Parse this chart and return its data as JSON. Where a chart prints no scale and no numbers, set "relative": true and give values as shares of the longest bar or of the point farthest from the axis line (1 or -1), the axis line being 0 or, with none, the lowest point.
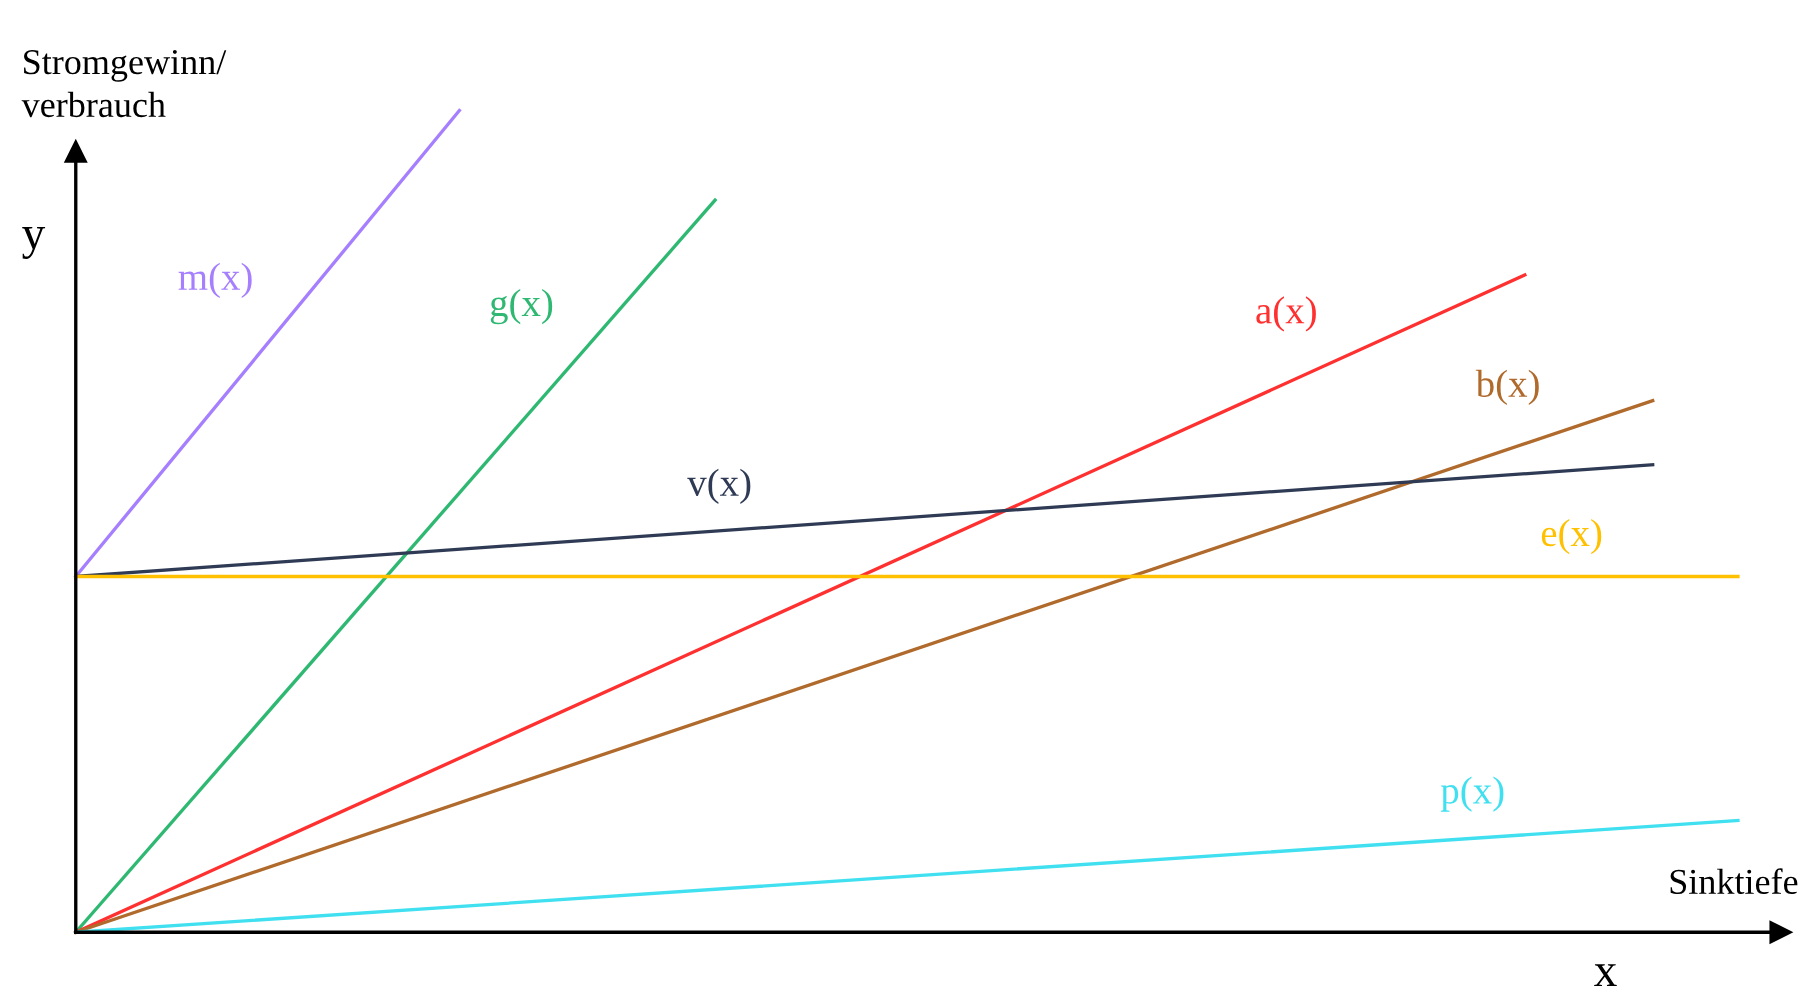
{
  "chart_data": {
    "type": "line",
    "relative": true,
    "xlabel": "Sinktiefe",
    "ylabel": "Stromgewinn/\nverbrauch",
    "annotations": [
      "y",
      "x"
    ],
    "marker": "none",
    "line_style": "solid",
    "categories": [
      null,
      null,
      null,
      null,
      null,
      null,
      null,
      null,
      null,
      null,
      null,
      null,
      null,
      null,
      null,
      null,
      null,
      null,
      null,
      null,
      null,
      null,
      null,
      null,
      null,
      null,
      null,
      null,
      null,
      null,
      null,
      null,
      null,
      null,
      null,
      null,
      null,
      null,
      null,
      null,
      null
    ],
    "series": [
      {
        "name": "m(x)",
        "color": "#a67fff",
        "values": [
          0.433,
          null,
          null,
          null,
          null,
          null,
          null,
          null,
          null,
          1.0,
          null,
          null,
          null,
          null,
          null,
          null,
          null,
          null,
          null,
          null,
          null,
          null,
          null,
          null,
          null,
          null,
          null,
          null,
          null,
          null,
          null,
          null,
          null,
          null,
          null,
          null,
          null,
          null,
          null,
          null,
          null
        ]
      },
      {
        "name": "g(x)",
        "color": "#2eb872",
        "values": [
          0,
          null,
          null,
          null,
          null,
          null,
          null,
          null,
          null,
          null,
          null,
          null,
          null,
          null,
          null,
          0.891,
          null,
          null,
          null,
          null,
          null,
          null,
          null,
          null,
          null,
          null,
          null,
          null,
          null,
          null,
          null,
          null,
          null,
          null,
          null,
          null,
          null,
          null,
          null,
          null,
          null
        ]
      },
      {
        "name": "a(x)",
        "color": "#ff3030",
        "values": [
          0,
          null,
          null,
          null,
          null,
          null,
          null,
          null,
          null,
          null,
          null,
          null,
          null,
          null,
          null,
          null,
          null,
          null,
          null,
          null,
          null,
          null,
          null,
          null,
          null,
          null,
          null,
          null,
          null,
          null,
          null,
          null,
          null,
          null,
          0.8,
          null,
          null,
          null,
          null,
          null,
          null
        ]
      },
      {
        "name": "b(x)",
        "color": "#b06a2c",
        "values": [
          0,
          null,
          null,
          null,
          null,
          null,
          null,
          null,
          null,
          null,
          null,
          null,
          null,
          null,
          null,
          null,
          null,
          null,
          null,
          null,
          null,
          null,
          null,
          null,
          null,
          null,
          null,
          null,
          null,
          null,
          null,
          null,
          null,
          null,
          null,
          null,
          null,
          0.647,
          null,
          null,
          null
        ]
      },
      {
        "name": "v(x)",
        "color": "#2f3b55",
        "values": [
          0.433,
          null,
          null,
          null,
          null,
          null,
          null,
          null,
          null,
          null,
          null,
          null,
          null,
          null,
          null,
          null,
          null,
          null,
          null,
          null,
          null,
          null,
          null,
          null,
          null,
          null,
          null,
          null,
          null,
          null,
          null,
          null,
          null,
          null,
          null,
          null,
          null,
          0.569,
          null,
          null,
          null
        ]
      },
      {
        "name": "e(x)",
        "color": "#ffc000",
        "values": [
          0.433,
          null,
          null,
          null,
          null,
          null,
          null,
          null,
          null,
          null,
          null,
          null,
          null,
          null,
          null,
          null,
          null,
          null,
          null,
          null,
          null,
          null,
          null,
          null,
          null,
          null,
          null,
          null,
          null,
          null,
          null,
          null,
          null,
          null,
          null,
          null,
          null,
          null,
          null,
          0.433,
          null
        ]
      },
      {
        "name": "p(x)",
        "color": "#40e0f0",
        "values": [
          0,
          null,
          null,
          null,
          null,
          null,
          null,
          null,
          null,
          null,
          null,
          null,
          null,
          null,
          null,
          null,
          null,
          null,
          null,
          null,
          null,
          null,
          null,
          null,
          null,
          null,
          null,
          null,
          null,
          null,
          null,
          null,
          null,
          null,
          null,
          null,
          null,
          null,
          null,
          0.136,
          null
        ]
      }
    ]
  }
}
